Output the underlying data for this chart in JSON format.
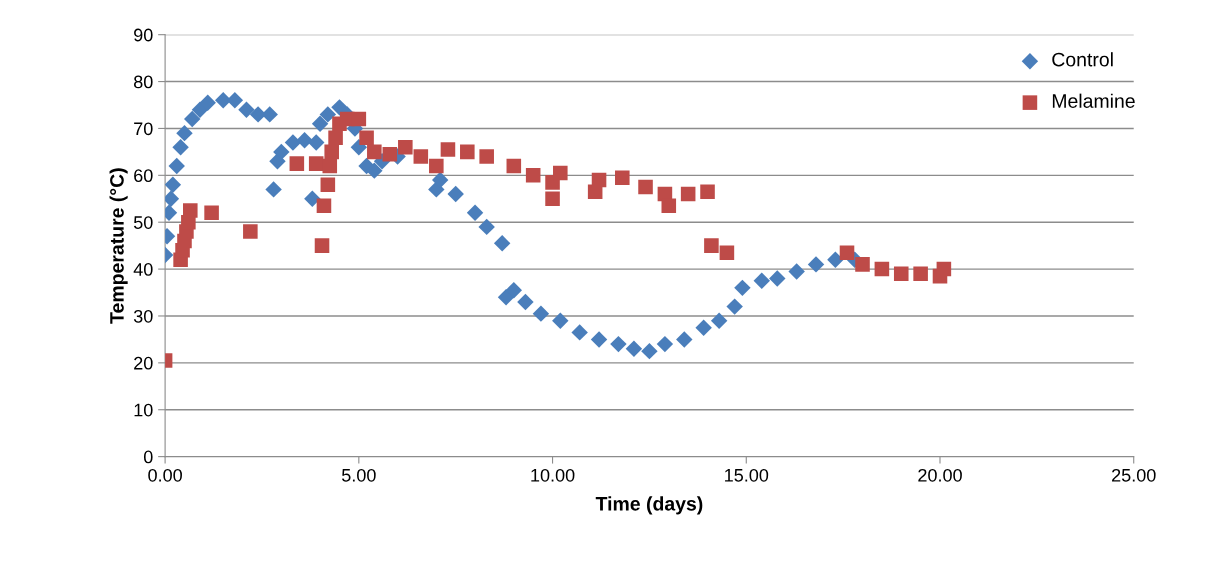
{
  "chart_data": {
    "type": "scatter",
    "xlabel": "Time (days)",
    "ylabel": "Temperature (°C)",
    "xlim": [
      0,
      25
    ],
    "xticks": [
      {
        "value": 0,
        "label": "0.00"
      },
      {
        "value": 5,
        "label": "5.00"
      },
      {
        "value": 10,
        "label": "10.00"
      },
      {
        "value": 15,
        "label": "15.00"
      },
      {
        "value": 20,
        "label": "20.00"
      },
      {
        "value": 25,
        "label": "25.00"
      }
    ],
    "ylim": [
      0,
      90
    ],
    "yticks": [
      0,
      10,
      20,
      30,
      40,
      50,
      60,
      70,
      80,
      90
    ],
    "grid": "y",
    "legend": "top right",
    "series": [
      {
        "name": "Control",
        "color": "#4a7ebb",
        "marker": "diamond",
        "x": [
          0.0,
          0.05,
          0.1,
          0.15,
          0.2,
          0.3,
          0.4,
          0.5,
          0.7,
          0.9,
          1.1,
          1.5,
          1.8,
          2.1,
          2.4,
          2.7,
          2.8,
          2.9,
          3.0,
          3.3,
          3.6,
          3.8,
          3.9,
          4.0,
          4.2,
          4.5,
          4.7,
          4.9,
          5.0,
          5.2,
          5.4,
          5.6,
          6.0,
          7.0,
          7.1,
          7.5,
          8.0,
          8.3,
          8.7,
          8.8,
          9.0,
          9.3,
          9.7,
          10.2,
          10.7,
          11.2,
          11.7,
          12.1,
          12.5,
          12.9,
          13.4,
          13.9,
          14.3,
          14.7,
          14.9,
          15.4,
          15.8,
          16.3,
          16.8,
          17.3,
          17.8
        ],
        "values": [
          43,
          47,
          52,
          55,
          58,
          62,
          66,
          69,
          72,
          74,
          75.5,
          76,
          76,
          74,
          73,
          73,
          57,
          63,
          65,
          67,
          67.5,
          55,
          67,
          71,
          73,
          74.5,
          73,
          70,
          66,
          62,
          61,
          63,
          64,
          57,
          59,
          56,
          52,
          49,
          45.5,
          34,
          35.5,
          33,
          30.5,
          29,
          26.5,
          25,
          24,
          23,
          22.5,
          24,
          25,
          27.5,
          29,
          32,
          36,
          37.5,
          38,
          39.5,
          41,
          42,
          42
        ]
      },
      {
        "name": "Melamine",
        "color": "#be4b48",
        "marker": "square",
        "x": [
          0.0,
          0.4,
          0.45,
          0.5,
          0.55,
          0.6,
          0.65,
          1.2,
          2.2,
          3.4,
          3.9,
          4.05,
          4.1,
          4.2,
          4.25,
          4.3,
          4.4,
          4.5,
          4.7,
          5.0,
          5.2,
          5.4,
          5.8,
          6.2,
          6.6,
          7.0,
          7.3,
          7.8,
          8.3,
          9.0,
          9.5,
          10.0,
          10.0,
          10.2,
          11.1,
          11.2,
          11.8,
          12.4,
          12.9,
          13.0,
          13.5,
          14.0,
          14.1,
          14.5,
          17.6,
          18.0,
          18.5,
          19.0,
          19.5,
          20.0,
          20.1
        ],
        "values": [
          20.5,
          42,
          44,
          46,
          48,
          50,
          52.5,
          52,
          48,
          62.5,
          62.5,
          45,
          53.5,
          58,
          62,
          65,
          68,
          71,
          72,
          72,
          68,
          65,
          64.5,
          66,
          64,
          62,
          65.5,
          65,
          64,
          62,
          60,
          58.5,
          55,
          60.5,
          56.5,
          59,
          59.5,
          57.5,
          56,
          53.5,
          56,
          56.5,
          45,
          43.5,
          43.5,
          41,
          40,
          39,
          39,
          38.5,
          40
        ]
      }
    ]
  }
}
